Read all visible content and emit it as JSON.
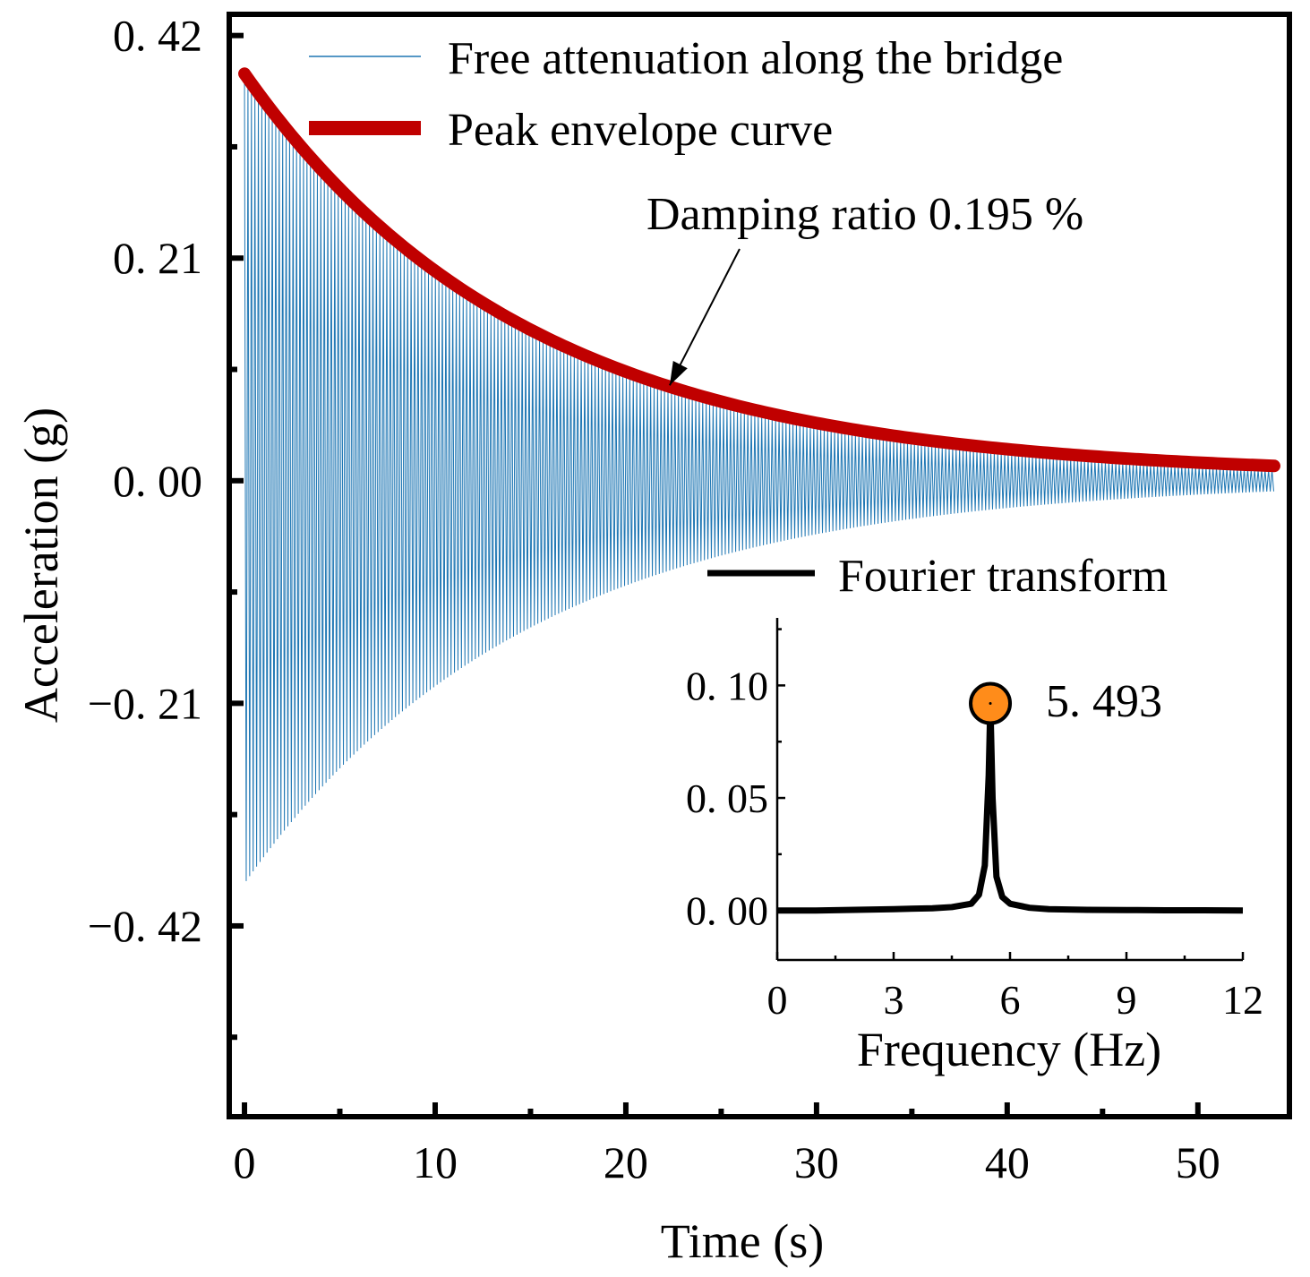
{
  "chart_data": [
    {
      "type": "line",
      "name": "main",
      "xlabel": "Time (s)",
      "ylabel": "Acceleration (g)",
      "xlim": [
        -0.8,
        54.8
      ],
      "ylim": [
        -0.6,
        0.44
      ],
      "xticks": [
        0,
        10,
        20,
        30,
        40,
        50
      ],
      "xtick_labels": [
        "0",
        "10",
        "20",
        "30",
        "40",
        "50"
      ],
      "yticks": [
        0.42,
        0.21,
        0.0,
        -0.21,
        -0.42
      ],
      "ytick_labels": [
        "0. 42",
        "0. 21",
        "0. 00",
        "−0. 21",
        "−0. 42"
      ],
      "legend_location": "top",
      "series": [
        {
          "name": "Free attenuation along the bridge",
          "color": "#1f77b4",
          "kind": "damped-oscillation",
          "amplitude_start": 0.38,
          "frequency_hz": 5.493,
          "damping_ratio_percent": 0.195,
          "t_start": 0,
          "t_end": 54
        },
        {
          "name": "Peak envelope curve",
          "color": "#c00000",
          "kind": "envelope",
          "x": [
            0,
            5,
            10,
            15,
            20,
            25,
            30,
            35,
            40,
            45,
            50,
            54
          ],
          "values": [
            0.382,
            0.271,
            0.192,
            0.136,
            0.097,
            0.069,
            0.049,
            0.035,
            0.025,
            0.018,
            0.013,
            0.01
          ]
        }
      ],
      "annotation": {
        "text": "Damping ratio  0.195 %",
        "target_x": 22.3,
        "target_y": 0.09
      }
    },
    {
      "type": "line",
      "name": "inset",
      "xlabel": "Frequency (Hz)",
      "ylabel": "",
      "xlim": [
        0,
        12
      ],
      "ylim": [
        -0.022,
        0.13
      ],
      "xticks": [
        0,
        3,
        6,
        9,
        12
      ],
      "xtick_labels": [
        "0",
        "3",
        "6",
        "9",
        "12"
      ],
      "yticks": [
        0.0,
        0.05,
        0.1
      ],
      "ytick_labels": [
        "0. 00",
        "0. 05",
        "0. 10"
      ],
      "series": [
        {
          "name": "Fourier transform",
          "color": "#000000",
          "x": [
            0,
            1,
            2,
            3,
            4,
            4.5,
            5.0,
            5.2,
            5.35,
            5.45,
            5.493,
            5.55,
            5.65,
            5.8,
            6.0,
            6.5,
            7,
            8,
            9,
            10,
            11,
            12
          ],
          "values": [
            0.0,
            0.0,
            0.0003,
            0.0006,
            0.001,
            0.0015,
            0.003,
            0.007,
            0.02,
            0.06,
            0.092,
            0.05,
            0.015,
            0.006,
            0.003,
            0.0012,
            0.0006,
            0.0003,
            0.0002,
            0.0001,
            0.0001,
            0.0
          ]
        }
      ],
      "peak": {
        "x": 5.493,
        "y": 0.092,
        "label": "5. 493",
        "marker_color": "#ff8c1a"
      }
    }
  ]
}
